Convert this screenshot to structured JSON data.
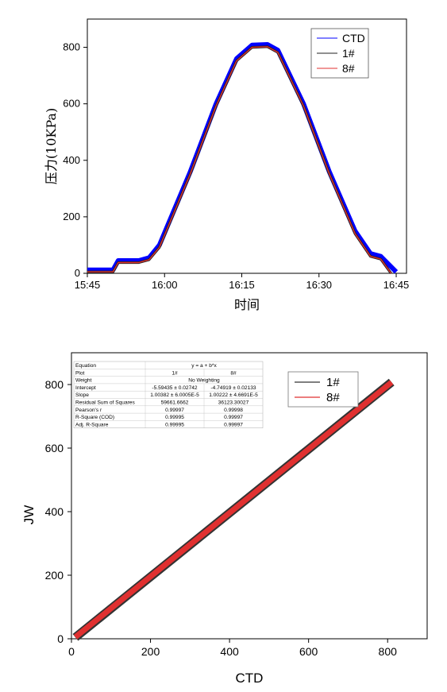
{
  "chart_data": [
    {
      "type": "line",
      "title": "",
      "xlabel": "时间",
      "ylabel": "压力(10KPa)",
      "x_ticks": [
        "15:45",
        "16:00",
        "16:15",
        "16:30",
        "16:45"
      ],
      "xlim": [
        "15:45",
        "16:47"
      ],
      "ylim": [
        0,
        900
      ],
      "y_ticks": [
        0,
        200,
        400,
        600,
        800
      ],
      "legend_position": "top-right",
      "series": [
        {
          "name": "CTD",
          "color": "#0000ff",
          "points": [
            [
              "15:45",
              12
            ],
            [
              "15:50",
              12
            ],
            [
              "15:51",
              45
            ],
            [
              "15:55",
              45
            ],
            [
              "15:57",
              55
            ],
            [
              "15:59",
              100
            ],
            [
              "16:05",
              360
            ],
            [
              "16:10",
              600
            ],
            [
              "16:14",
              760
            ],
            [
              "16:17",
              808
            ],
            [
              "16:20",
              810
            ],
            [
              "16:22",
              790
            ],
            [
              "16:27",
              600
            ],
            [
              "16:32",
              360
            ],
            [
              "16:37",
              150
            ],
            [
              "16:40",
              70
            ],
            [
              "16:42",
              60
            ],
            [
              "16:45",
              5
            ]
          ]
        },
        {
          "name": "1#",
          "color": "#222222",
          "points": [
            [
              "15:45",
              5
            ],
            [
              "15:50",
              5
            ],
            [
              "15:51",
              38
            ],
            [
              "15:55",
              38
            ],
            [
              "15:57",
              48
            ],
            [
              "15:59",
              92
            ],
            [
              "16:05",
              352
            ],
            [
              "16:10",
              592
            ],
            [
              "16:14",
              752
            ],
            [
              "16:17",
              800
            ],
            [
              "16:20",
              802
            ],
            [
              "16:22",
              782
            ],
            [
              "16:27",
              592
            ],
            [
              "16:32",
              352
            ],
            [
              "16:37",
              140
            ],
            [
              "16:40",
              60
            ],
            [
              "16:42",
              50
            ],
            [
              "16:44",
              0
            ]
          ]
        },
        {
          "name": "8#",
          "color": "#e03030",
          "points": [
            [
              "15:45",
              5
            ],
            [
              "15:50",
              5
            ],
            [
              "15:51",
              38
            ],
            [
              "15:55",
              38
            ],
            [
              "15:57",
              48
            ],
            [
              "15:59",
              92
            ],
            [
              "16:05",
              352
            ],
            [
              "16:10",
              592
            ],
            [
              "16:14",
              752
            ],
            [
              "16:17",
              800
            ],
            [
              "16:20",
              802
            ],
            [
              "16:22",
              782
            ],
            [
              "16:27",
              592
            ],
            [
              "16:32",
              352
            ],
            [
              "16:37",
              140
            ],
            [
              "16:40",
              60
            ],
            [
              "16:42",
              50
            ],
            [
              "16:44",
              0
            ]
          ]
        }
      ]
    },
    {
      "type": "scatter",
      "title": "",
      "xlabel": "CTD",
      "ylabel": "JW",
      "xlim": [
        0,
        900
      ],
      "ylim": [
        0,
        900
      ],
      "x_ticks": [
        0,
        200,
        400,
        600,
        800
      ],
      "y_ticks": [
        0,
        200,
        400,
        600,
        800
      ],
      "legend_position": "top-right",
      "series": [
        {
          "name": "1#",
          "color": "#333333",
          "fit_intercept": -5.59435,
          "fit_slope": 1.00382,
          "x_range": [
            10,
            810
          ]
        },
        {
          "name": "8#",
          "color": "#e03030",
          "fit_intercept": -4.74919,
          "fit_slope": 1.00222,
          "x_range": [
            10,
            810
          ]
        }
      ],
      "stats_table": {
        "rows": [
          [
            "Equation",
            "y = a + b*x",
            ""
          ],
          [
            "Plot",
            "1#",
            "8#"
          ],
          [
            "Weight",
            "No Weighting",
            ""
          ],
          [
            "Intercept",
            "-5.59435 ± 0.02742",
            "-4.74919 ± 0.02133"
          ],
          [
            "Slope",
            "1.00382 ± 6.0005E-5",
            "1.00222 ± 4.6691E-5"
          ],
          [
            "Residual Sum of Squares",
            "59661.6662",
            "36123.30027"
          ],
          [
            "Pearson's r",
            "0.99997",
            "0.99998"
          ],
          [
            "R-Square (COD)",
            "0.99995",
            "0.99997"
          ],
          [
            "Adj. R-Square",
            "0.99995",
            "0.99997"
          ]
        ]
      }
    }
  ]
}
